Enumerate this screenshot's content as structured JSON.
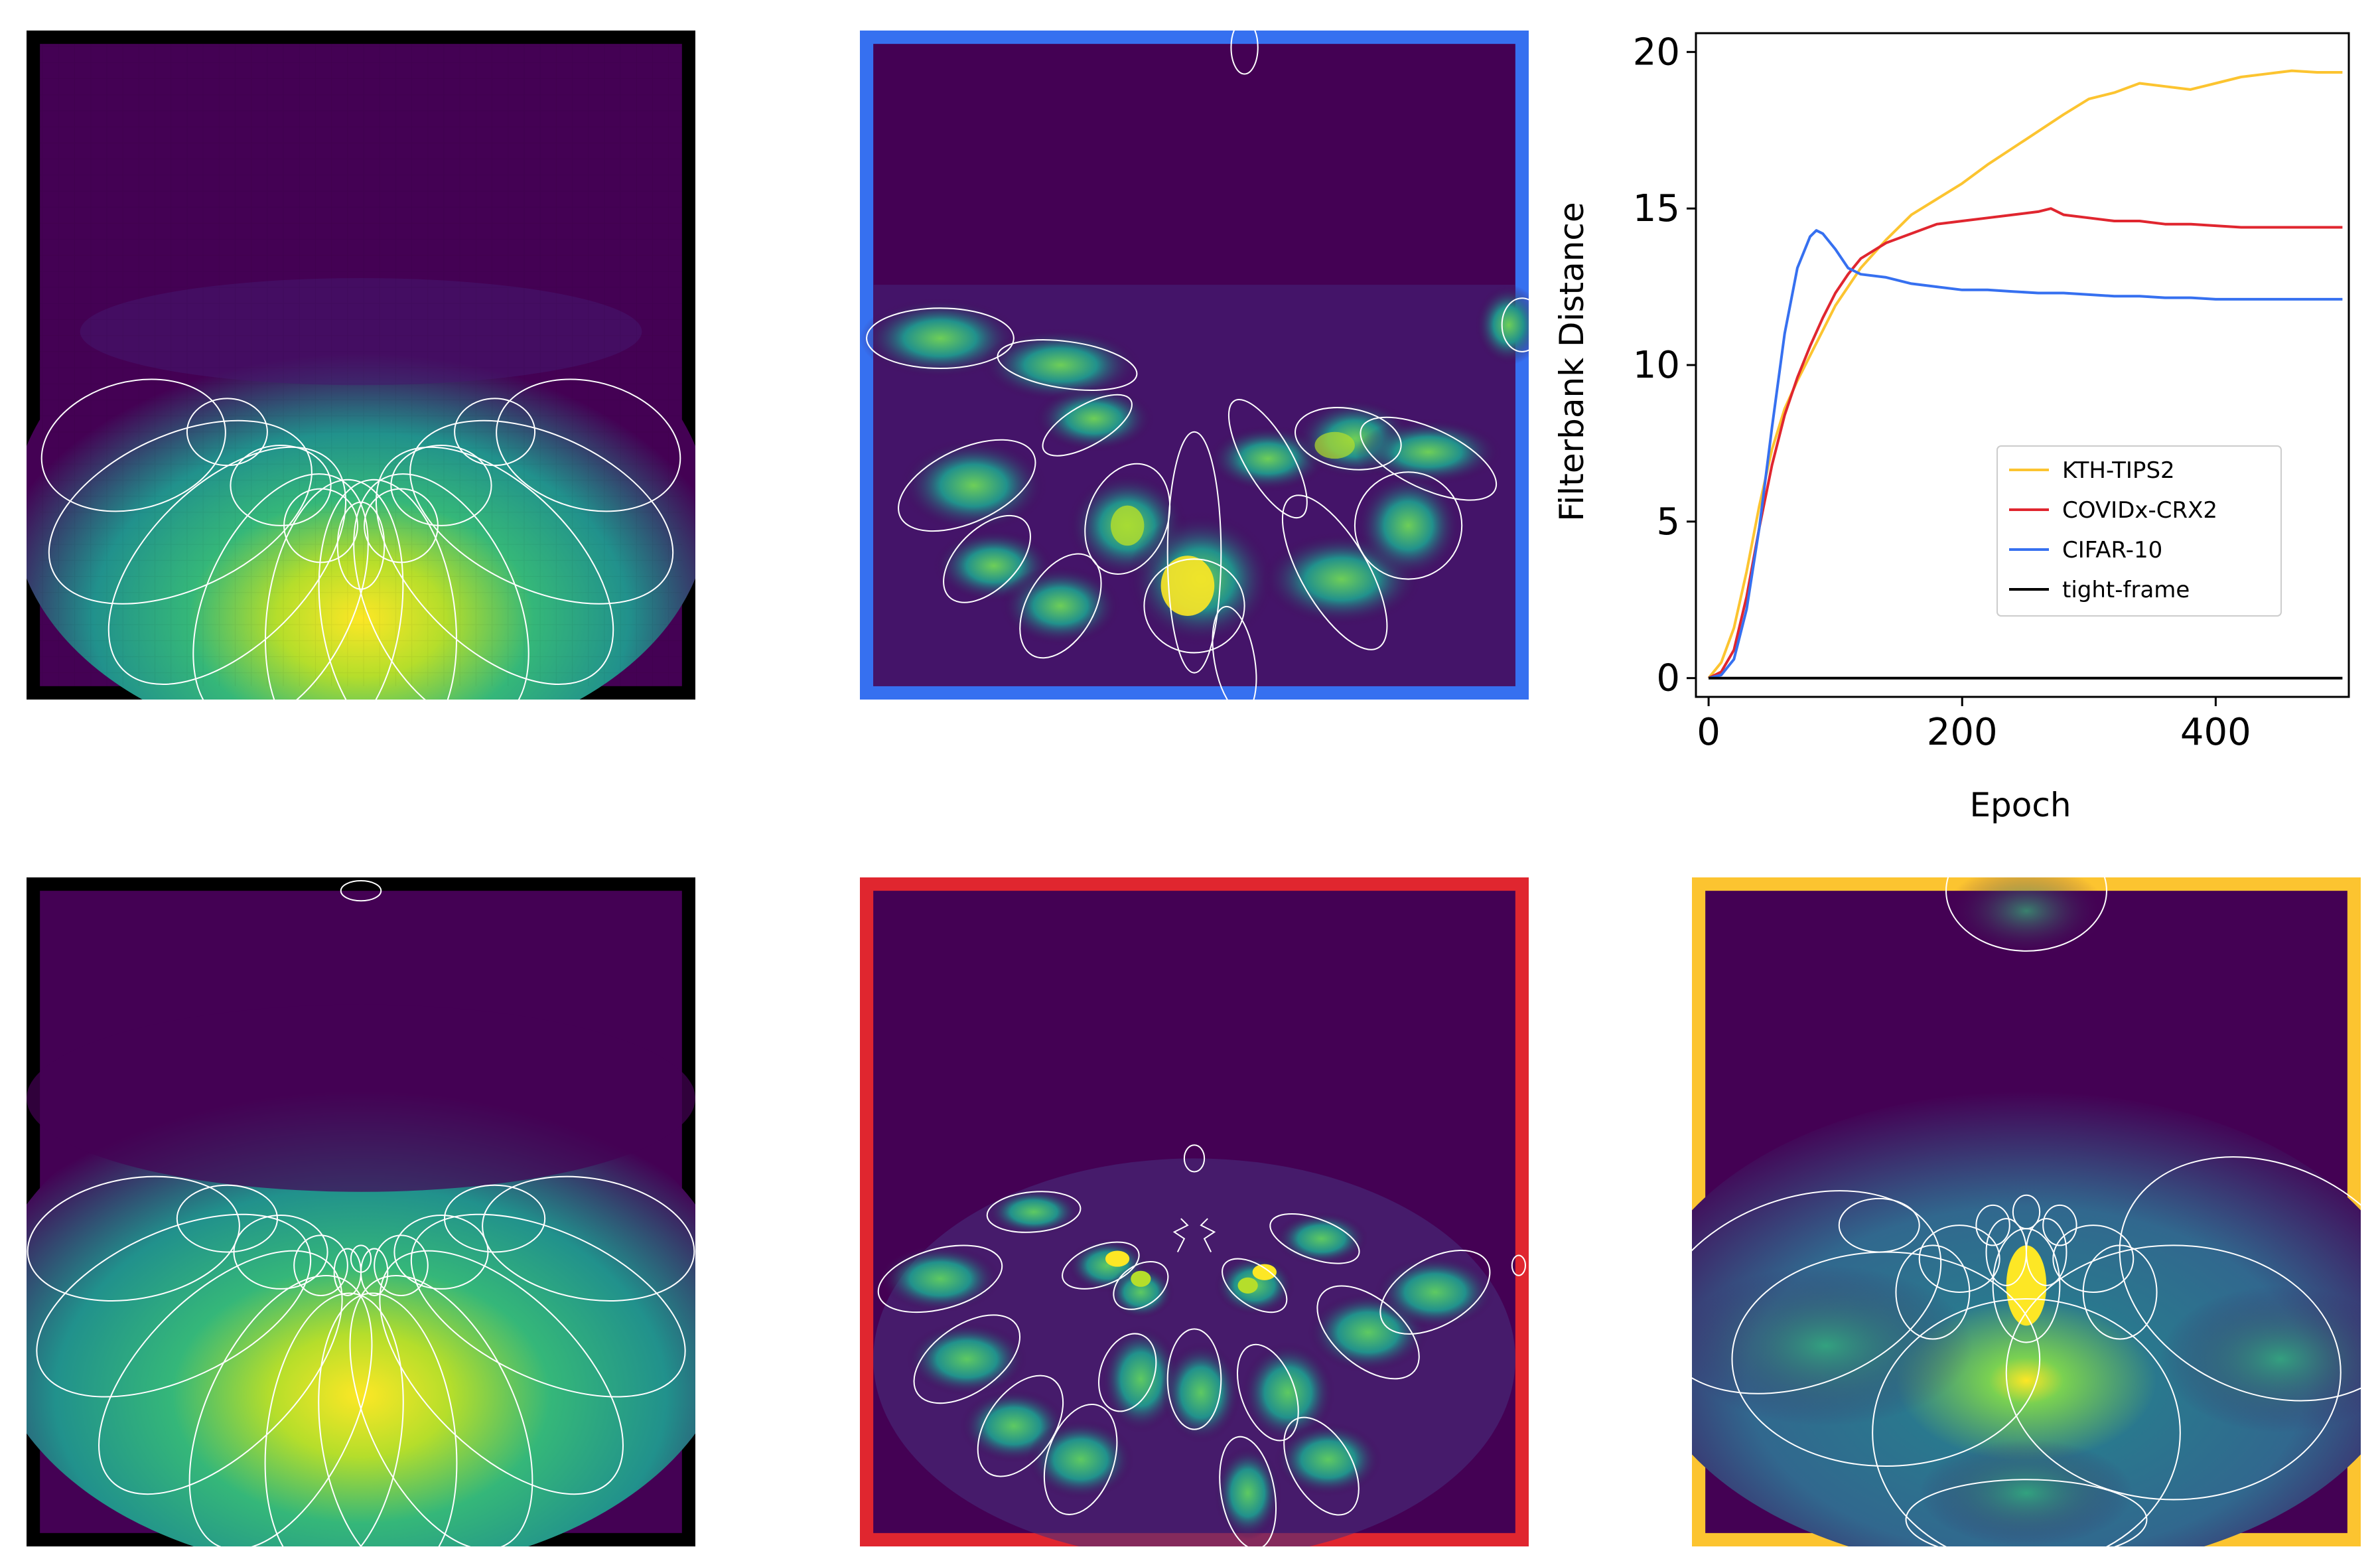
{
  "colors": {
    "heatmap_low": "#440154",
    "heatmap_mid": "#21918c",
    "heatmap_high": "#fde725",
    "contour": "#ffffff",
    "frame_black": "#000000",
    "frame_blue": "#3670f0",
    "frame_red": "#e0262f",
    "frame_yellow": "#fcc430"
  },
  "panels": [
    {
      "id": "top-left",
      "frame_color": "#000000",
      "type": "heatmap",
      "style": "pixelated-fan"
    },
    {
      "id": "top-middle",
      "frame_color": "#3670f0",
      "type": "heatmap",
      "style": "pixelated-scattered"
    },
    {
      "id": "bottom-left",
      "frame_color": "#000000",
      "type": "heatmap",
      "style": "smooth-fan"
    },
    {
      "id": "bottom-middle",
      "frame_color": "#e0262f",
      "type": "heatmap",
      "style": "smooth-scattered"
    },
    {
      "id": "bottom-right",
      "frame_color": "#fcc430",
      "type": "heatmap",
      "style": "smooth-wide"
    }
  ],
  "chart_data": {
    "type": "line",
    "title": "",
    "xlabel": "Epoch",
    "ylabel": "Filterbank Distance",
    "xlim": [
      -10,
      505
    ],
    "ylim": [
      -0.6,
      20.6
    ],
    "xticks": [
      0,
      200,
      400
    ],
    "yticks": [
      0,
      5,
      10,
      15,
      20
    ],
    "grid": false,
    "legend_position": "lower-right",
    "series": [
      {
        "name": "KTH-TIPS2",
        "color": "#fcc430",
        "x": [
          0,
          10,
          20,
          30,
          40,
          50,
          60,
          70,
          80,
          90,
          100,
          110,
          120,
          140,
          160,
          180,
          200,
          220,
          250,
          280,
          300,
          320,
          340,
          360,
          380,
          400,
          420,
          440,
          460,
          480,
          500
        ],
        "y": [
          0,
          0.5,
          1.6,
          3.4,
          5.5,
          7.3,
          8.6,
          9.5,
          10.3,
          11.1,
          11.9,
          12.5,
          13.1,
          14.0,
          14.8,
          15.3,
          15.8,
          16.4,
          17.2,
          18.0,
          18.5,
          18.7,
          19.0,
          18.9,
          18.8,
          19.0,
          19.2,
          19.3,
          19.4,
          19.35,
          19.35
        ]
      },
      {
        "name": "COVIDx-CRX2",
        "color": "#e0262f",
        "x": [
          0,
          10,
          20,
          30,
          40,
          50,
          60,
          70,
          80,
          90,
          100,
          110,
          120,
          140,
          160,
          180,
          200,
          220,
          240,
          260,
          270,
          280,
          300,
          320,
          340,
          360,
          380,
          400,
          420,
          440,
          460,
          480,
          500
        ],
        "y": [
          0,
          0.2,
          0.9,
          2.6,
          4.8,
          6.8,
          8.4,
          9.6,
          10.6,
          11.5,
          12.3,
          12.9,
          13.4,
          13.9,
          14.2,
          14.5,
          14.6,
          14.7,
          14.8,
          14.9,
          15.0,
          14.8,
          14.7,
          14.6,
          14.6,
          14.5,
          14.5,
          14.45,
          14.4,
          14.4,
          14.4,
          14.4,
          14.4
        ]
      },
      {
        "name": "CIFAR-10",
        "color": "#3670f0",
        "x": [
          0,
          10,
          20,
          30,
          40,
          50,
          60,
          70,
          80,
          85,
          90,
          100,
          110,
          120,
          140,
          160,
          180,
          200,
          220,
          240,
          260,
          280,
          300,
          320,
          340,
          360,
          380,
          400,
          420,
          440,
          460,
          480,
          500
        ],
        "y": [
          0,
          0.1,
          0.6,
          2.2,
          4.8,
          8.0,
          11.0,
          13.1,
          14.1,
          14.3,
          14.2,
          13.7,
          13.1,
          12.9,
          12.8,
          12.6,
          12.5,
          12.4,
          12.4,
          12.35,
          12.3,
          12.3,
          12.25,
          12.2,
          12.2,
          12.15,
          12.15,
          12.1,
          12.1,
          12.1,
          12.1,
          12.1,
          12.1
        ]
      },
      {
        "name": "tight-frame",
        "color": "#000000",
        "x": [
          0,
          500
        ],
        "y": [
          0,
          0
        ]
      }
    ]
  }
}
